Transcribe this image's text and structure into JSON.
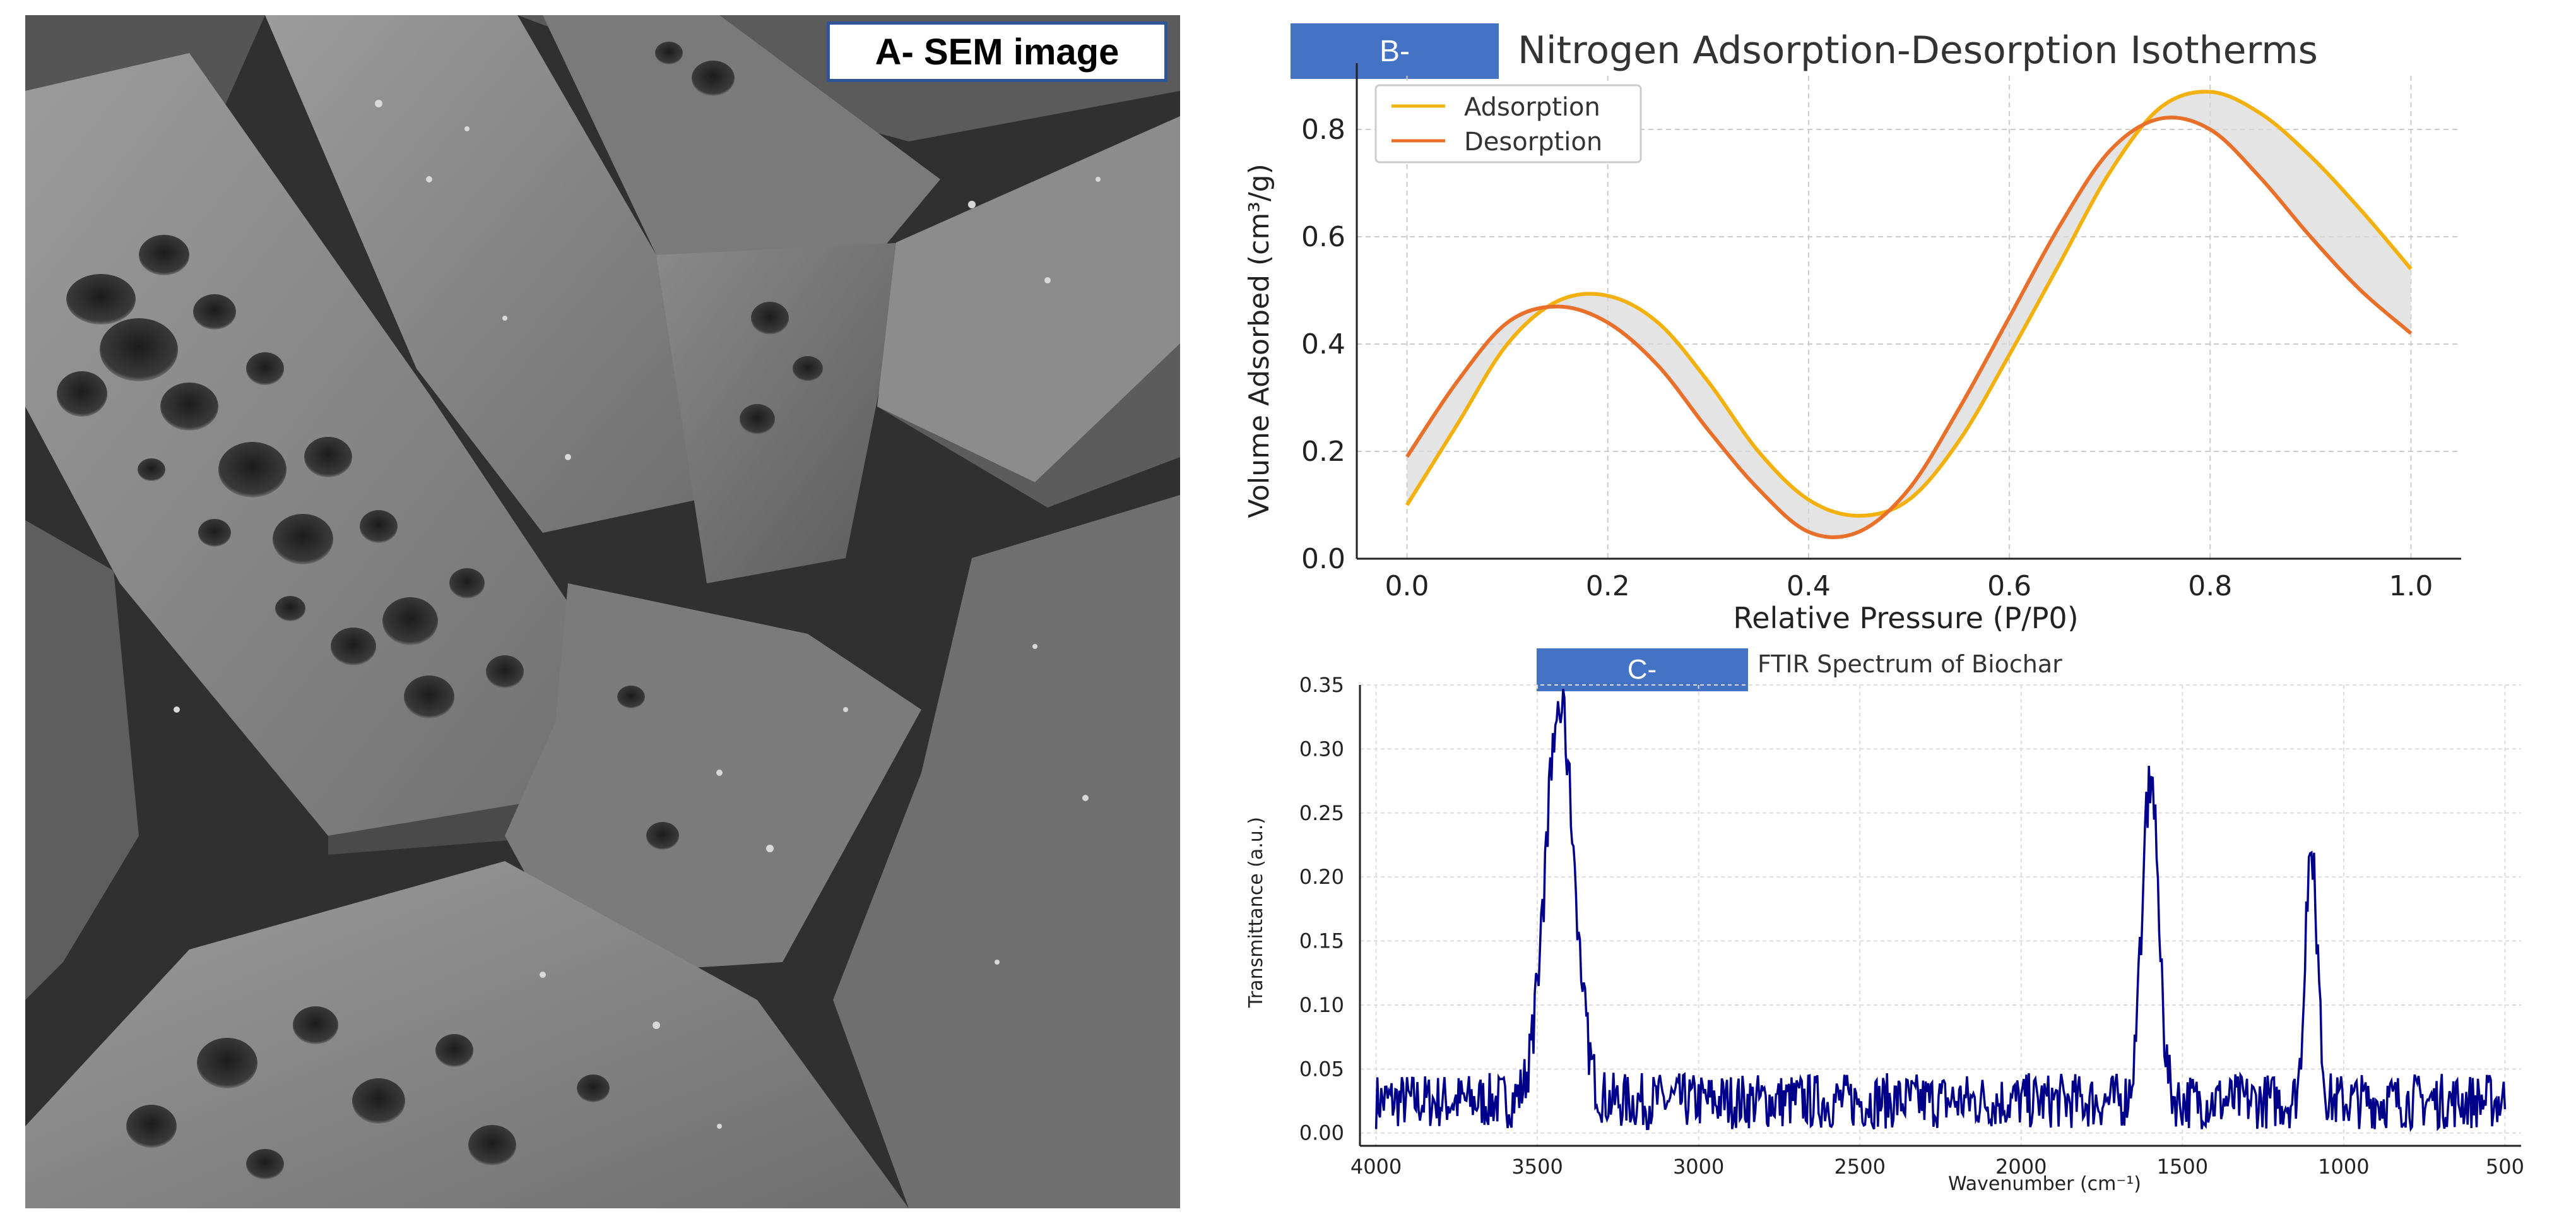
{
  "panel_a": {
    "label": "A- SEM image",
    "image": "sem-micrograph"
  },
  "chart_data": [
    {
      "panel_tag": "B-",
      "type": "line",
      "title": "Nitrogen Adsorption-Desorption Isotherms",
      "xlabel": "Relative Pressure (P/P0)",
      "ylabel": "Volume Adsorbed (cm³/g)",
      "xlim": [
        -0.05,
        1.05
      ],
      "ylim": [
        0.0,
        0.9
      ],
      "xticks": [
        "0.0",
        "0.2",
        "0.4",
        "0.6",
        "0.8",
        "1.0"
      ],
      "yticks": [
        "0.0",
        "0.2",
        "0.4",
        "0.6",
        "0.8"
      ],
      "grid": true,
      "legend": "top-left",
      "shaded_between_series": true,
      "x": [
        0,
        0.05,
        0.1,
        0.15,
        0.2,
        0.25,
        0.3,
        0.35,
        0.4,
        0.45,
        0.5,
        0.55,
        0.6,
        0.65,
        0.7,
        0.75,
        0.8,
        0.85,
        0.9,
        0.95,
        1.0
      ],
      "series": [
        {
          "name": "Adsorption",
          "color": "#f2b10e",
          "values": [
            0.1,
            0.25,
            0.4,
            0.48,
            0.49,
            0.44,
            0.33,
            0.2,
            0.11,
            0.08,
            0.11,
            0.22,
            0.38,
            0.55,
            0.72,
            0.84,
            0.87,
            0.83,
            0.75,
            0.65,
            0.54
          ]
        },
        {
          "name": "Desorption",
          "color": "#e8702a",
          "values": [
            0.19,
            0.33,
            0.44,
            0.47,
            0.44,
            0.36,
            0.24,
            0.13,
            0.05,
            0.05,
            0.13,
            0.28,
            0.45,
            0.62,
            0.76,
            0.82,
            0.8,
            0.71,
            0.6,
            0.5,
            0.42
          ]
        }
      ]
    },
    {
      "panel_tag": "C-",
      "type": "line",
      "title": "FTIR Spectrum of Biochar",
      "xlabel": "Wavenumber (cm⁻¹)",
      "ylabel": "Transmittance (a.u.)",
      "xlim": [
        4050,
        450
      ],
      "ylim": [
        -0.01,
        0.35
      ],
      "xticks": [
        "4000",
        "3500",
        "3000",
        "2500",
        "2000",
        "1500",
        "1000",
        "500"
      ],
      "yticks": [
        "0.00",
        "0.05",
        "0.10",
        "0.15",
        "0.20",
        "0.25",
        "0.30",
        "0.35"
      ],
      "grid": true,
      "baseline": 0.025,
      "noise_amplitude": 0.022,
      "series": [
        {
          "color": "#00008b",
          "peaks": [
            {
              "x": 3430,
              "y": 0.33,
              "width": 45
            },
            {
              "x": 1600,
              "y": 0.28,
              "width": 25
            },
            {
              "x": 1100,
              "y": 0.23,
              "width": 18
            }
          ]
        }
      ]
    }
  ],
  "colors": {
    "tag_fill": "#4472c4",
    "tag_text": "#ffffff",
    "grid": "#cccccc"
  }
}
